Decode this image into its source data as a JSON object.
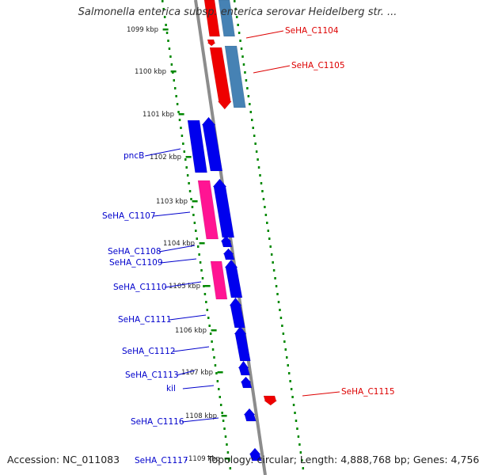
{
  "title": "Salmonella enterica subsp. enterica serovar Heidelberg str. ...",
  "footer": {
    "accession": "Accession: NC_011083",
    "summary": "Topology: circular; Length: 4,888,768 bp; Genes: 4,756"
  },
  "colors": {
    "forward_cds": "#0000ee",
    "reverse_cds": "#ff1493",
    "red_feature": "#ee0000",
    "steelblue_feature": "#4682b4",
    "tick": "#008800",
    "backbone": "#8c8c8c",
    "blue_label": "#0000cc",
    "red_label": "#dd0000"
  },
  "scale_labels": [
    "1099 kbp",
    "1100 kbp",
    "1101 kbp",
    "1102 kbp",
    "1103 kbp",
    "1104 kbp",
    "1105 kbp",
    "1106 kbp",
    "1107 kbp",
    "1108 kbp",
    "1109 kbp"
  ],
  "gene_labels": {
    "left": [
      "pncB",
      "SeHA_C1107",
      "SeHA_C1108",
      "SeHA_C1109",
      "SeHA_C1110",
      "SeHA_C1111",
      "SeHA_C1112",
      "SeHA_C1113",
      "kil",
      "SeHA_C1116",
      "SeHA_C1117"
    ],
    "right": [
      "SeHA_C1104",
      "SeHA_C1105",
      "SeHA_C1115"
    ]
  }
}
